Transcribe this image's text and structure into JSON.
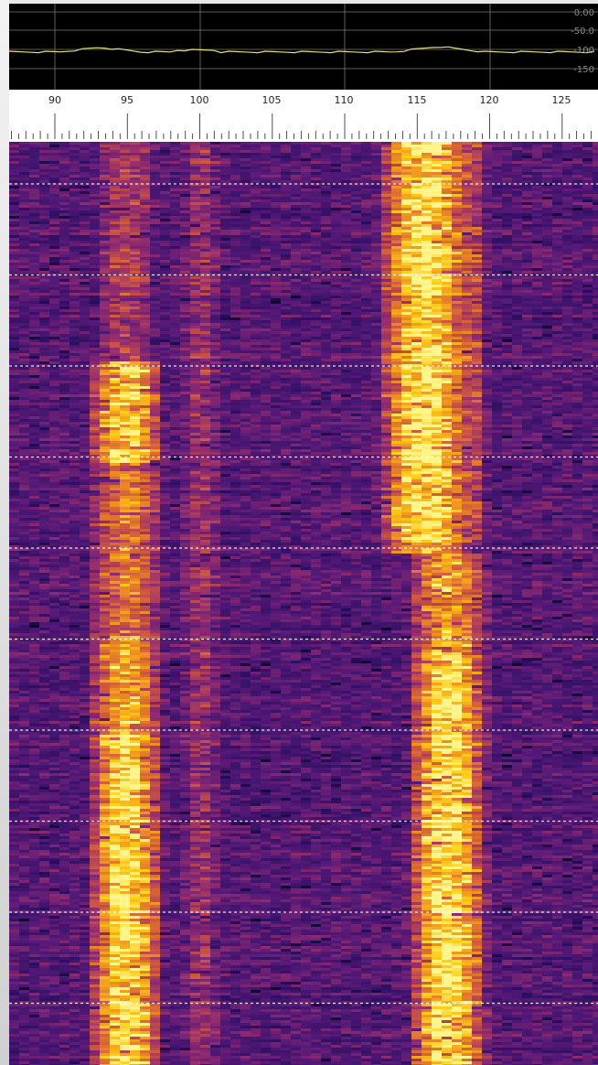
{
  "spectrum": {
    "db_scale_labels": [
      "0.00",
      "-50.0",
      "-100",
      "-150"
    ],
    "colors": {
      "background": "#000000",
      "grid": "#7a7a7a",
      "trace": "#e8e070"
    }
  },
  "ruler": {
    "freq_labels": [
      "90",
      "95",
      "100",
      "105",
      "110",
      "115",
      "120",
      "125"
    ],
    "colors": {
      "background": "#ffffff",
      "tick": "#3a3a3a",
      "text": "#222222"
    }
  },
  "waterfall": {
    "colors": {
      "low": "#1a0a4a",
      "mid": "#8a2a80",
      "high": "#ffd21a",
      "marker": "#ffffff"
    }
  }
}
